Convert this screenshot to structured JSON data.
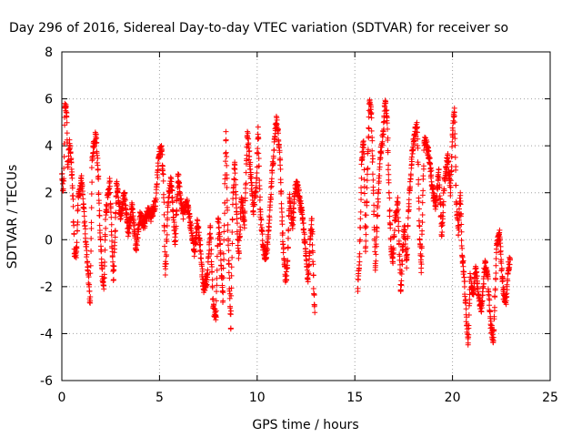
{
  "chart_data": {
    "type": "scatter",
    "title": "Day 296 of 2016, Sidereal Day-to-day VTEC variation (SDTVAR) for receiver so",
    "xlabel": "GPS time / hours",
    "ylabel": "SDTVAR / TECUs",
    "xlim": [
      0,
      25
    ],
    "ylim": [
      -6,
      8
    ],
    "xticks": [
      0,
      5,
      10,
      15,
      20,
      25
    ],
    "yticks": [
      -6,
      -4,
      -2,
      0,
      2,
      4,
      6,
      8
    ],
    "grid": true,
    "marker": "+",
    "color": "#ff0000",
    "series": [
      {
        "name": "SDTVAR",
        "keypoints": [
          [
            0.0,
            2.8
          ],
          [
            0.05,
            2.1
          ],
          [
            0.1,
            2.5
          ],
          [
            0.15,
            5.8
          ],
          [
            0.2,
            5.6
          ],
          [
            0.25,
            5.4
          ],
          [
            0.3,
            3.2
          ],
          [
            0.4,
            4.1
          ],
          [
            0.5,
            3.0
          ],
          [
            0.55,
            2.2
          ],
          [
            0.65,
            -0.7
          ],
          [
            0.75,
            -0.5
          ],
          [
            0.85,
            1.8
          ],
          [
            1.0,
            2.6
          ],
          [
            1.1,
            1.5
          ],
          [
            1.25,
            -0.3
          ],
          [
            1.35,
            -1.5
          ],
          [
            1.45,
            -2.7
          ],
          [
            1.55,
            3.5
          ],
          [
            1.65,
            4.1
          ],
          [
            1.75,
            4.5
          ],
          [
            1.85,
            3.0
          ],
          [
            1.95,
            0.4
          ],
          [
            2.05,
            -1.2
          ],
          [
            2.15,
            -2.1
          ],
          [
            2.25,
            1.2
          ],
          [
            2.35,
            1.8
          ],
          [
            2.45,
            2.5
          ],
          [
            2.55,
            0.2
          ],
          [
            2.65,
            -1.7
          ],
          [
            2.8,
            2.4
          ],
          [
            3.0,
            1.0
          ],
          [
            3.2,
            2.0
          ],
          [
            3.4,
            0.3
          ],
          [
            3.6,
            1.5
          ],
          [
            3.8,
            -0.4
          ],
          [
            4.0,
            1.0
          ],
          [
            4.2,
            0.6
          ],
          [
            4.4,
            1.2
          ],
          [
            4.6,
            1.0
          ],
          [
            4.8,
            1.6
          ],
          [
            4.95,
            3.5
          ],
          [
            5.1,
            4.0
          ],
          [
            5.2,
            2.5
          ],
          [
            5.3,
            -1.5
          ],
          [
            5.45,
            1.8
          ],
          [
            5.6,
            2.6
          ],
          [
            5.7,
            1.2
          ],
          [
            5.8,
            -0.2
          ],
          [
            5.95,
            2.8
          ],
          [
            6.05,
            2.0
          ],
          [
            6.2,
            1.1
          ],
          [
            6.4,
            1.6
          ],
          [
            6.6,
            0.6
          ],
          [
            6.8,
            -0.5
          ],
          [
            6.95,
            0.8
          ],
          [
            7.1,
            -0.5
          ],
          [
            7.25,
            -2.1
          ],
          [
            7.45,
            -1.6
          ],
          [
            7.6,
            0.6
          ],
          [
            7.75,
            -2.9
          ],
          [
            7.9,
            -3.3
          ],
          [
            8.0,
            0.9
          ],
          [
            8.1,
            -0.2
          ],
          [
            8.25,
            -2.6
          ],
          [
            8.4,
            4.6
          ],
          [
            8.5,
            0.4
          ],
          [
            8.65,
            -3.8
          ],
          [
            8.75,
            1.5
          ],
          [
            8.85,
            3.3
          ],
          [
            8.95,
            1.2
          ],
          [
            9.05,
            -0.8
          ],
          [
            9.2,
            1.8
          ],
          [
            9.35,
            0.5
          ],
          [
            9.5,
            4.6
          ],
          [
            9.65,
            3.0
          ],
          [
            9.8,
            1.2
          ],
          [
            9.95,
            2.2
          ],
          [
            10.05,
            4.8
          ],
          [
            10.15,
            1.3
          ],
          [
            10.3,
            -0.3
          ],
          [
            10.45,
            -0.8
          ],
          [
            10.6,
            0.4
          ],
          [
            10.75,
            2.6
          ],
          [
            10.9,
            4.4
          ],
          [
            11.0,
            5.2
          ],
          [
            11.15,
            3.8
          ],
          [
            11.3,
            0.2
          ],
          [
            11.45,
            -1.8
          ],
          [
            11.55,
            -1.2
          ],
          [
            11.65,
            1.8
          ],
          [
            11.8,
            0.6
          ],
          [
            11.95,
            2.2
          ],
          [
            12.05,
            2.3
          ],
          [
            12.2,
            1.6
          ],
          [
            12.35,
            0.7
          ],
          [
            12.5,
            -0.7
          ],
          [
            12.6,
            -1.7
          ],
          [
            12.7,
            -0.2
          ],
          [
            12.8,
            0.9
          ],
          [
            12.9,
            -2.3
          ],
          [
            12.95,
            -3.1
          ],
          [
            15.15,
            -2.2
          ],
          [
            15.25,
            -0.6
          ],
          [
            15.35,
            3.4
          ],
          [
            15.45,
            4.2
          ],
          [
            15.55,
            -0.5
          ],
          [
            15.65,
            3.0
          ],
          [
            15.75,
            5.8
          ],
          [
            15.85,
            5.4
          ],
          [
            15.95,
            2.1
          ],
          [
            16.05,
            -1.3
          ],
          [
            16.15,
            1.0
          ],
          [
            16.3,
            3.5
          ],
          [
            16.45,
            4.5
          ],
          [
            16.55,
            5.8
          ],
          [
            16.65,
            5.2
          ],
          [
            16.75,
            2.0
          ],
          [
            16.85,
            -0.3
          ],
          [
            16.95,
            -1.0
          ],
          [
            17.05,
            0.8
          ],
          [
            17.2,
            1.6
          ],
          [
            17.35,
            -2.2
          ],
          [
            17.45,
            -0.4
          ],
          [
            17.55,
            0.6
          ],
          [
            17.65,
            -1.2
          ],
          [
            17.75,
            1.2
          ],
          [
            17.85,
            2.6
          ],
          [
            17.95,
            3.8
          ],
          [
            18.05,
            4.5
          ],
          [
            18.2,
            4.8
          ],
          [
            18.3,
            0.6
          ],
          [
            18.4,
            -1.4
          ],
          [
            18.55,
            4.2
          ],
          [
            18.7,
            4.0
          ],
          [
            18.85,
            3.2
          ],
          [
            19.0,
            2.0
          ],
          [
            19.15,
            1.4
          ],
          [
            19.3,
            3.0
          ],
          [
            19.45,
            0.2
          ],
          [
            19.6,
            2.6
          ],
          [
            19.75,
            3.6
          ],
          [
            19.9,
            2.0
          ],
          [
            20.0,
            4.5
          ],
          [
            20.1,
            5.6
          ],
          [
            20.2,
            1.5
          ],
          [
            20.3,
            0.2
          ],
          [
            20.4,
            2.0
          ],
          [
            20.5,
            -0.7
          ],
          [
            20.6,
            -1.6
          ],
          [
            20.7,
            -3.2
          ],
          [
            20.8,
            -4.4
          ],
          [
            20.9,
            -1.6
          ],
          [
            21.05,
            -2.3
          ],
          [
            21.2,
            -1.2
          ],
          [
            21.35,
            -2.5
          ],
          [
            21.5,
            -2.9
          ],
          [
            21.65,
            -1.0
          ],
          [
            21.8,
            -1.5
          ],
          [
            21.95,
            -3.6
          ],
          [
            22.1,
            -4.3
          ],
          [
            22.25,
            -0.4
          ],
          [
            22.4,
            0.3
          ],
          [
            22.5,
            -1.0
          ],
          [
            22.6,
            -2.3
          ],
          [
            22.75,
            -2.6
          ],
          [
            22.85,
            -1.2
          ],
          [
            22.95,
            -0.8
          ]
        ]
      }
    ]
  }
}
